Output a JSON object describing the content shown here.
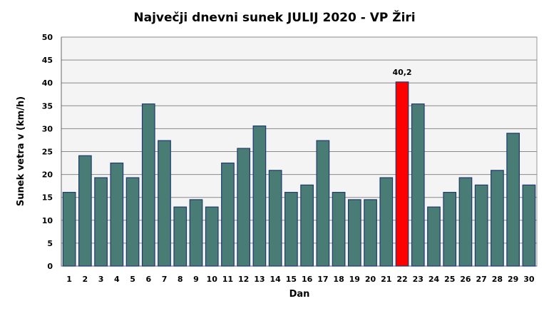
{
  "chart_data": {
    "type": "bar",
    "title": "Največji dnevni sunek JULIJ 2020 - VP Žiri",
    "xlabel": "Dan",
    "ylabel": "Sunek vetra  v (km/h)",
    "ylim": [
      0,
      50
    ],
    "yticks": [
      0,
      5,
      10,
      15,
      20,
      25,
      30,
      35,
      40,
      45,
      50
    ],
    "grid": true,
    "categories": [
      "1",
      "2",
      "3",
      "4",
      "5",
      "6",
      "7",
      "8",
      "9",
      "10",
      "11",
      "12",
      "13",
      "14",
      "15",
      "16",
      "17",
      "18",
      "19",
      "20",
      "21",
      "22",
      "23",
      "24",
      "25",
      "26",
      "27",
      "28",
      "29",
      "30"
    ],
    "values": [
      16.1,
      24.1,
      19.3,
      22.5,
      19.3,
      35.4,
      27.4,
      12.9,
      14.5,
      12.9,
      22.5,
      25.7,
      30.6,
      20.9,
      16.1,
      17.7,
      27.4,
      16.1,
      14.5,
      14.5,
      19.3,
      40.2,
      35.4,
      12.9,
      16.1,
      19.3,
      17.7,
      20.9,
      29.0,
      17.7
    ],
    "highlight_index": 21,
    "highlight_label": "40,2",
    "colors": {
      "bar": "#4a7c76",
      "highlight": "#ff0000",
      "edge": "#1f3a6e",
      "plot_bg": "#f4f4f4",
      "grid": "#8a8a8a"
    }
  }
}
